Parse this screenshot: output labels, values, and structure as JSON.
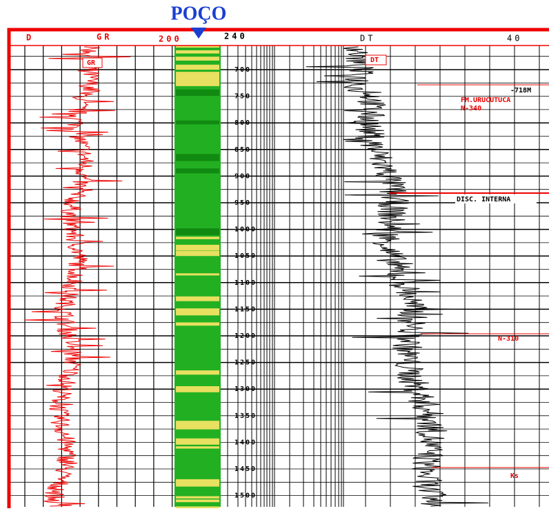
{
  "title": "POÇO",
  "header": {
    "depth": "D",
    "gr": "GR",
    "gr_scale": "200",
    "scale_mid": "240",
    "dt": "DT",
    "dt_scale": "40"
  },
  "annotations": {
    "gr_label": "GR",
    "dt_label": "DT",
    "depth_marker": "-718M",
    "formation": "FM.URUCUTUCA",
    "n340": "N-340",
    "disc": "DISC. INTERNA",
    "n310": "N-310",
    "ks": "Ks"
  },
  "depths": [
    "700",
    "750",
    "800",
    "850",
    "900",
    "950",
    "1000",
    "1050",
    "1100",
    "1150",
    "1200",
    "1250",
    "1300",
    "1350",
    "1400",
    "1450",
    "1500"
  ]
}
